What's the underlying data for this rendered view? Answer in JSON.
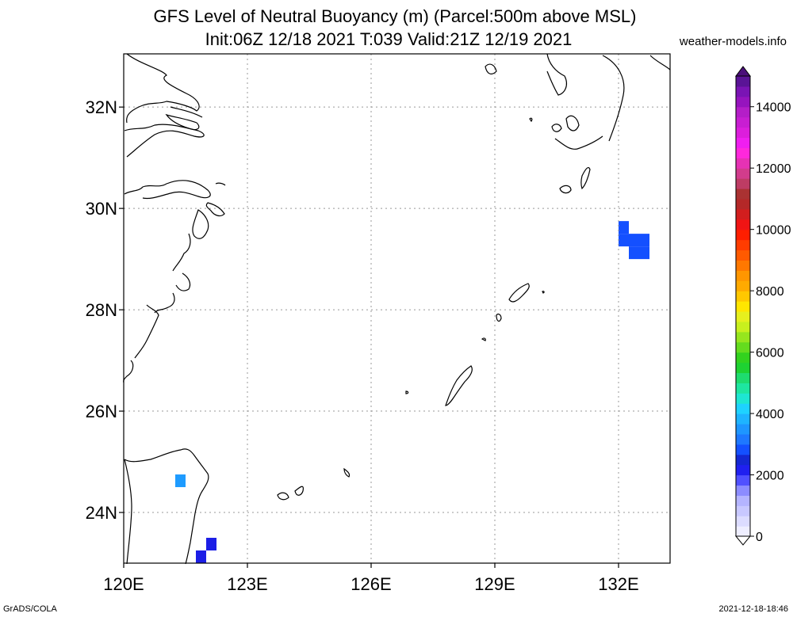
{
  "header": {
    "title_line1": "GFS Level of Neutral Buoyancy (m) (Parcel:500m above MSL)",
    "title_line2": "Init:06Z 12/18 2021 T:039 Valid:21Z 12/19 2021",
    "site": "weather-models.info"
  },
  "footer": {
    "left": "GrADS/COLA",
    "right": "2021-12-18-18:46"
  },
  "map": {
    "extent": {
      "lon": [
        120,
        133.25
      ],
      "lat": [
        23,
        33.05
      ]
    },
    "lon_ticks": [
      {
        "value": 120,
        "label": "120E"
      },
      {
        "value": 123,
        "label": "123E"
      },
      {
        "value": 126,
        "label": "126E"
      },
      {
        "value": 129,
        "label": "129E"
      },
      {
        "value": 132,
        "label": "132E"
      }
    ],
    "lat_ticks": [
      {
        "value": 24,
        "label": "24N"
      },
      {
        "value": 26,
        "label": "26N"
      },
      {
        "value": 28,
        "label": "28N"
      },
      {
        "value": 30,
        "label": "30N"
      },
      {
        "value": 32,
        "label": "32N"
      }
    ],
    "cells": [
      {
        "lon": 122.0,
        "lat": 23.25,
        "value": 1500,
        "color": "#1c1ee6"
      },
      {
        "lon": 121.75,
        "lat": 23.0,
        "value": 1500,
        "color": "#1c1ee6"
      },
      {
        "lon": 121.25,
        "lat": 24.5,
        "value": 3000,
        "color": "#1e9bff"
      },
      {
        "lon": 132.0,
        "lat": 29.5,
        "value": 2200,
        "color": "#1450ff"
      },
      {
        "lon": 132.0,
        "lat": 29.25,
        "value": 2200,
        "color": "#1450ff"
      },
      {
        "lon": 132.25,
        "lat": 29.25,
        "value": 2200,
        "color": "#1450ff"
      },
      {
        "lon": 132.25,
        "lat": 29.0,
        "value": 2200,
        "color": "#1450ff"
      },
      {
        "lon": 132.5,
        "lat": 29.25,
        "value": 2200,
        "color": "#1450ff"
      },
      {
        "lon": 132.5,
        "lat": 29.0,
        "value": 2200,
        "color": "#1450ff"
      }
    ]
  },
  "colorbar": {
    "min": 0,
    "max": 15000,
    "labels": [
      "0",
      "2000",
      "4000",
      "6000",
      "8000",
      "10000",
      "12000",
      "14000"
    ],
    "label_values": [
      0,
      2000,
      4000,
      6000,
      8000,
      10000,
      12000,
      14000
    ],
    "colors": [
      "#eeeeff",
      "#dcdcff",
      "#c8c8ff",
      "#b4b4ff",
      "#8c8cff",
      "#5050ff",
      "#2020f0",
      "#1428d2",
      "#1450ff",
      "#1e78ff",
      "#1e96ff",
      "#1eb4ff",
      "#1ed2ff",
      "#1ee6d2",
      "#1ee6a0",
      "#1edc6e",
      "#1ed232",
      "#32d21e",
      "#64dc1e",
      "#96e61e",
      "#c8f01e",
      "#e6f01e",
      "#ffe600",
      "#ffc800",
      "#ffaa00",
      "#ff9600",
      "#ff7800",
      "#ff5a00",
      "#ff3c00",
      "#ff1e00",
      "#f01414",
      "#d21e1e",
      "#b42828",
      "#aa3232",
      "#be3c64",
      "#d23c8c",
      "#e632b4",
      "#ff28dc",
      "#f01ef0",
      "#dc1edc",
      "#c81ed2",
      "#b41ec8",
      "#9614be",
      "#7a14b4",
      "#5a1496"
    ]
  }
}
